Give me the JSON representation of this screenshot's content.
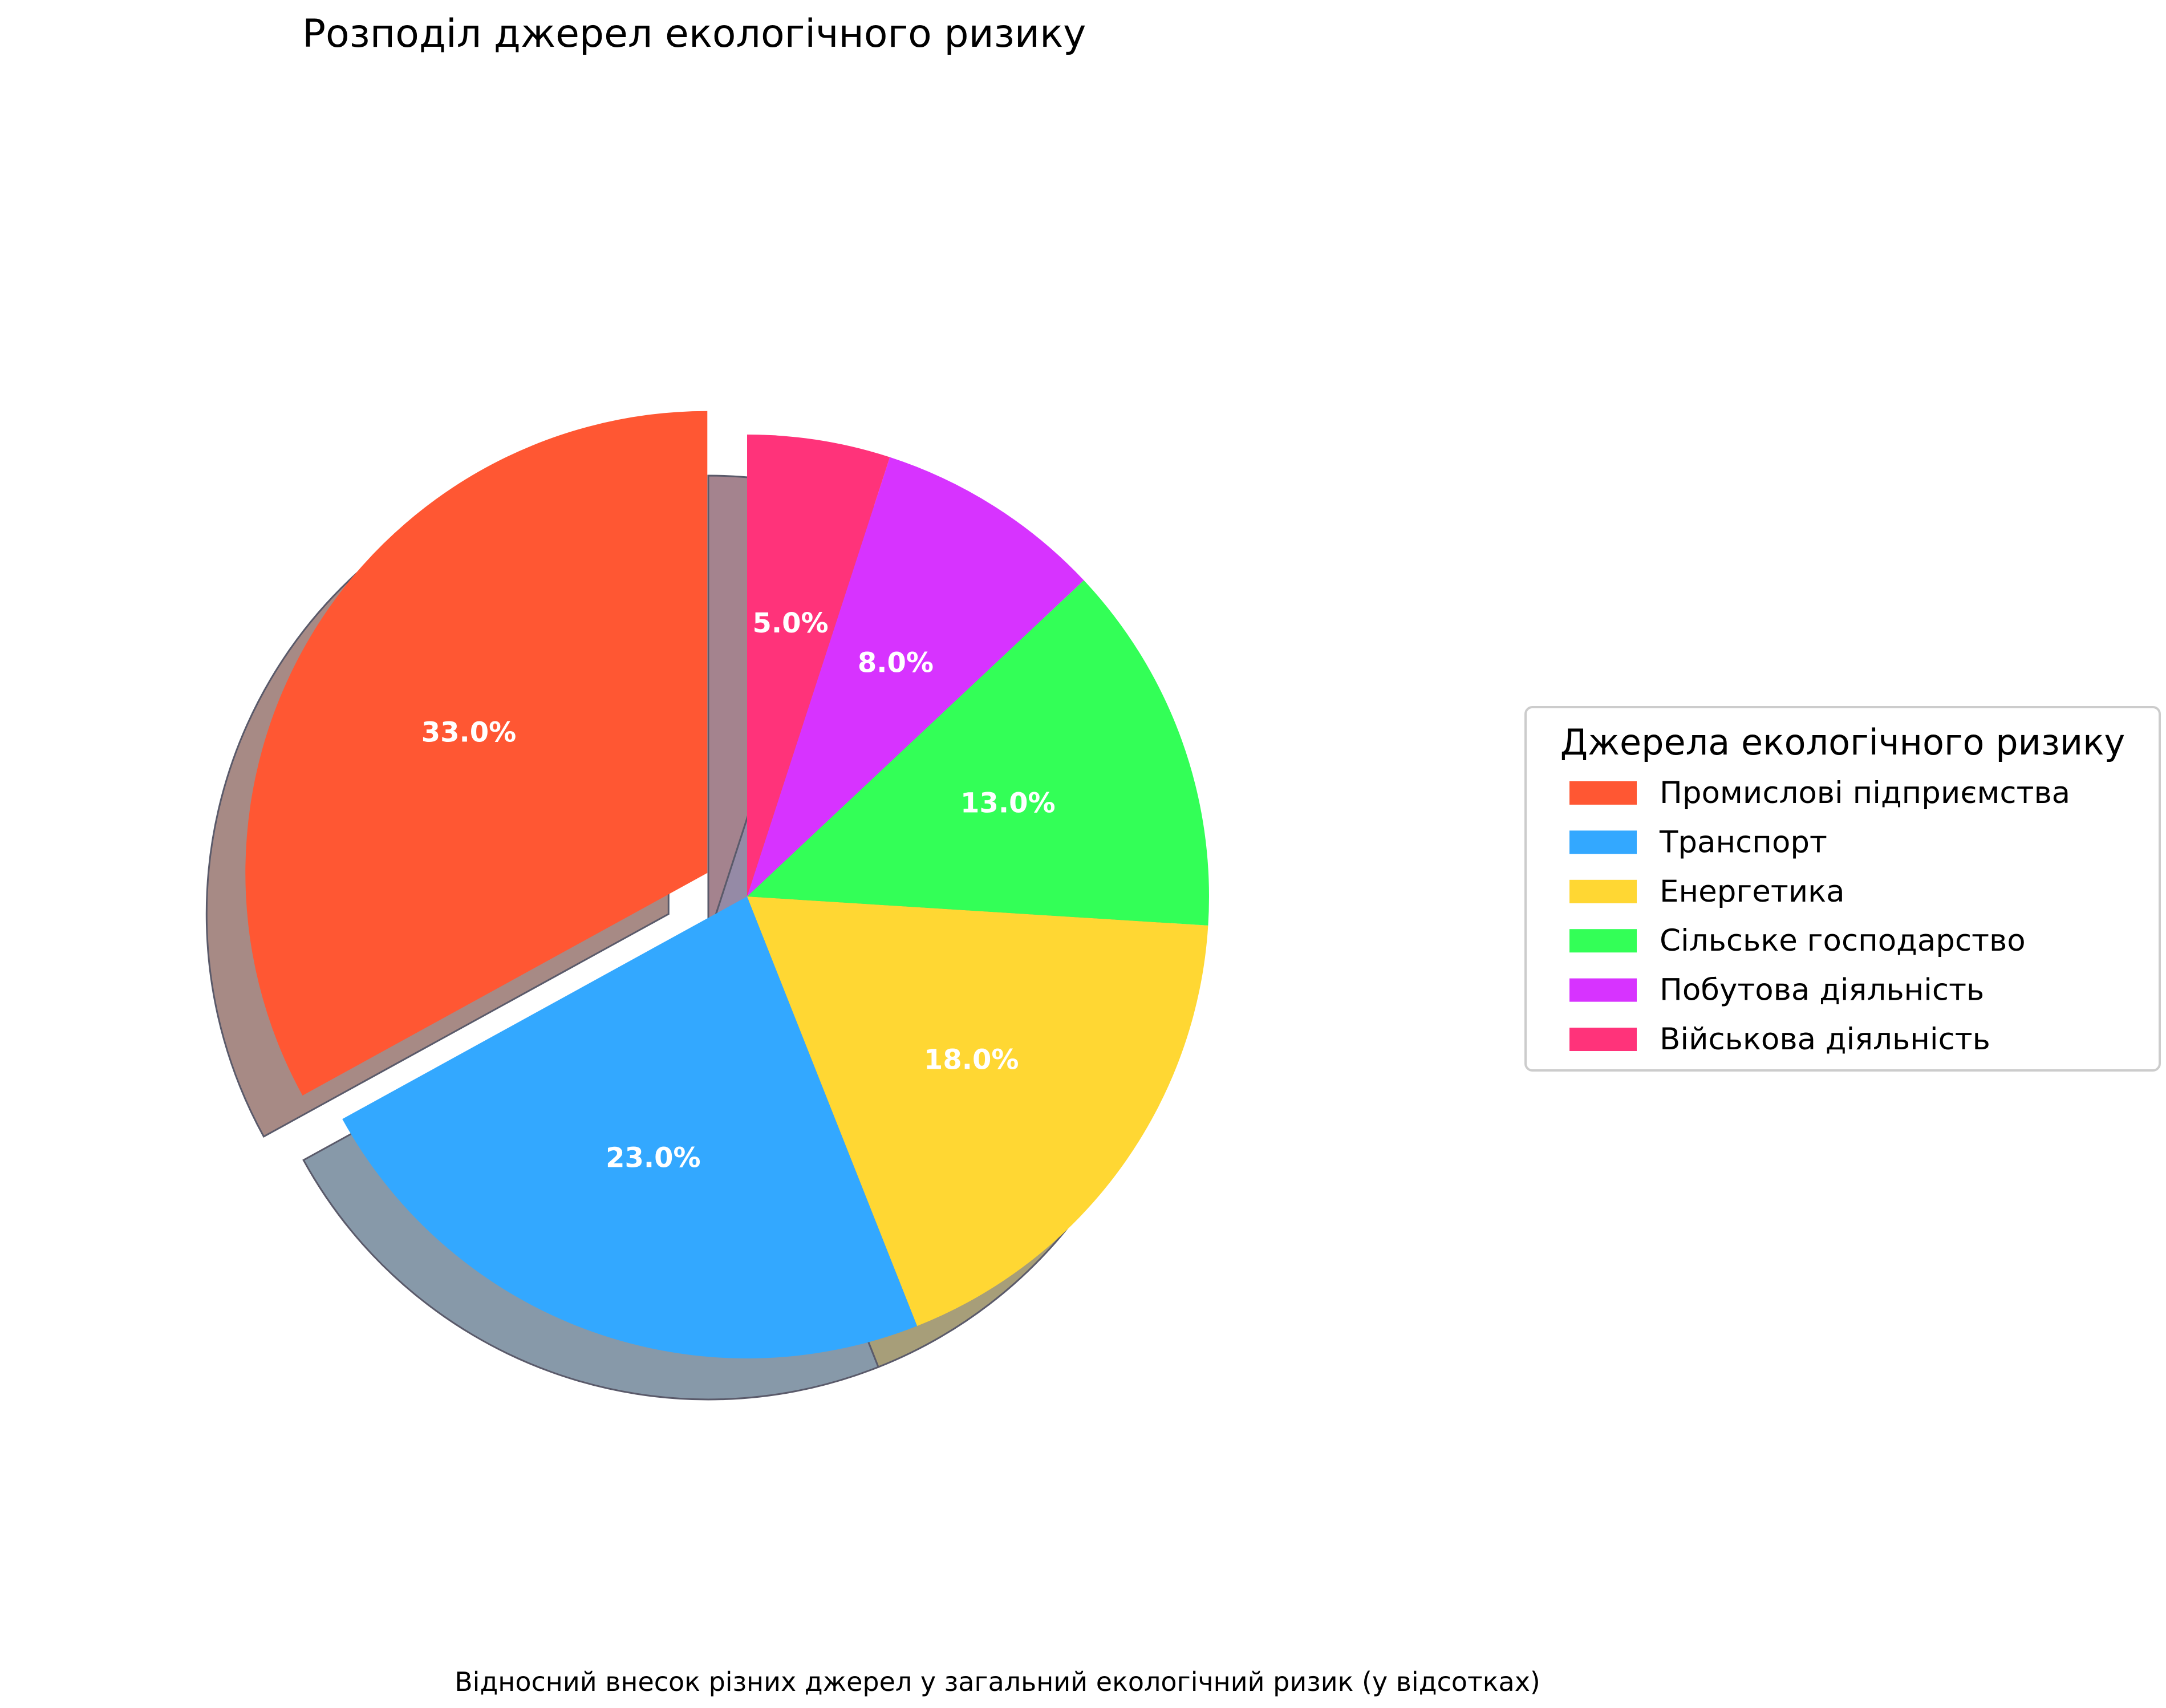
{
  "chart_data": {
    "type": "pie",
    "title": "Розподіл джерел екологічного ризику",
    "caption": "Відносний внесок різних джерел у загальний екологічний ризик (у відсотках)",
    "legend_title": "Джерела екологічного ризику",
    "legend_position": "right",
    "start_angle_deg": 90,
    "direction": "counterclockwise",
    "shadow": true,
    "categories": [
      "Промислові підприємства",
      "Транспорт",
      "Енергетика",
      "Сільське господарство",
      "Побутова діяльність",
      "Військова діяльність"
    ],
    "values": [
      33.0,
      23.0,
      18.0,
      13.0,
      8.0,
      5.0
    ],
    "labels": [
      "33.0%",
      "23.0%",
      "18.0%",
      "13.0%",
      "8.0%",
      "5.0%"
    ],
    "explode": [
      0.1,
      0,
      0,
      0,
      0,
      0
    ],
    "colors": [
      "#FF5733",
      "#33A8FF",
      "#FFD733",
      "#33FF57",
      "#D733FF",
      "#FF337A"
    ],
    "shadow_colors": [
      "#A78A85",
      "#8799A9",
      "#A79E79",
      "#7F9E82",
      "#958AA6",
      "#A4838E"
    ]
  }
}
